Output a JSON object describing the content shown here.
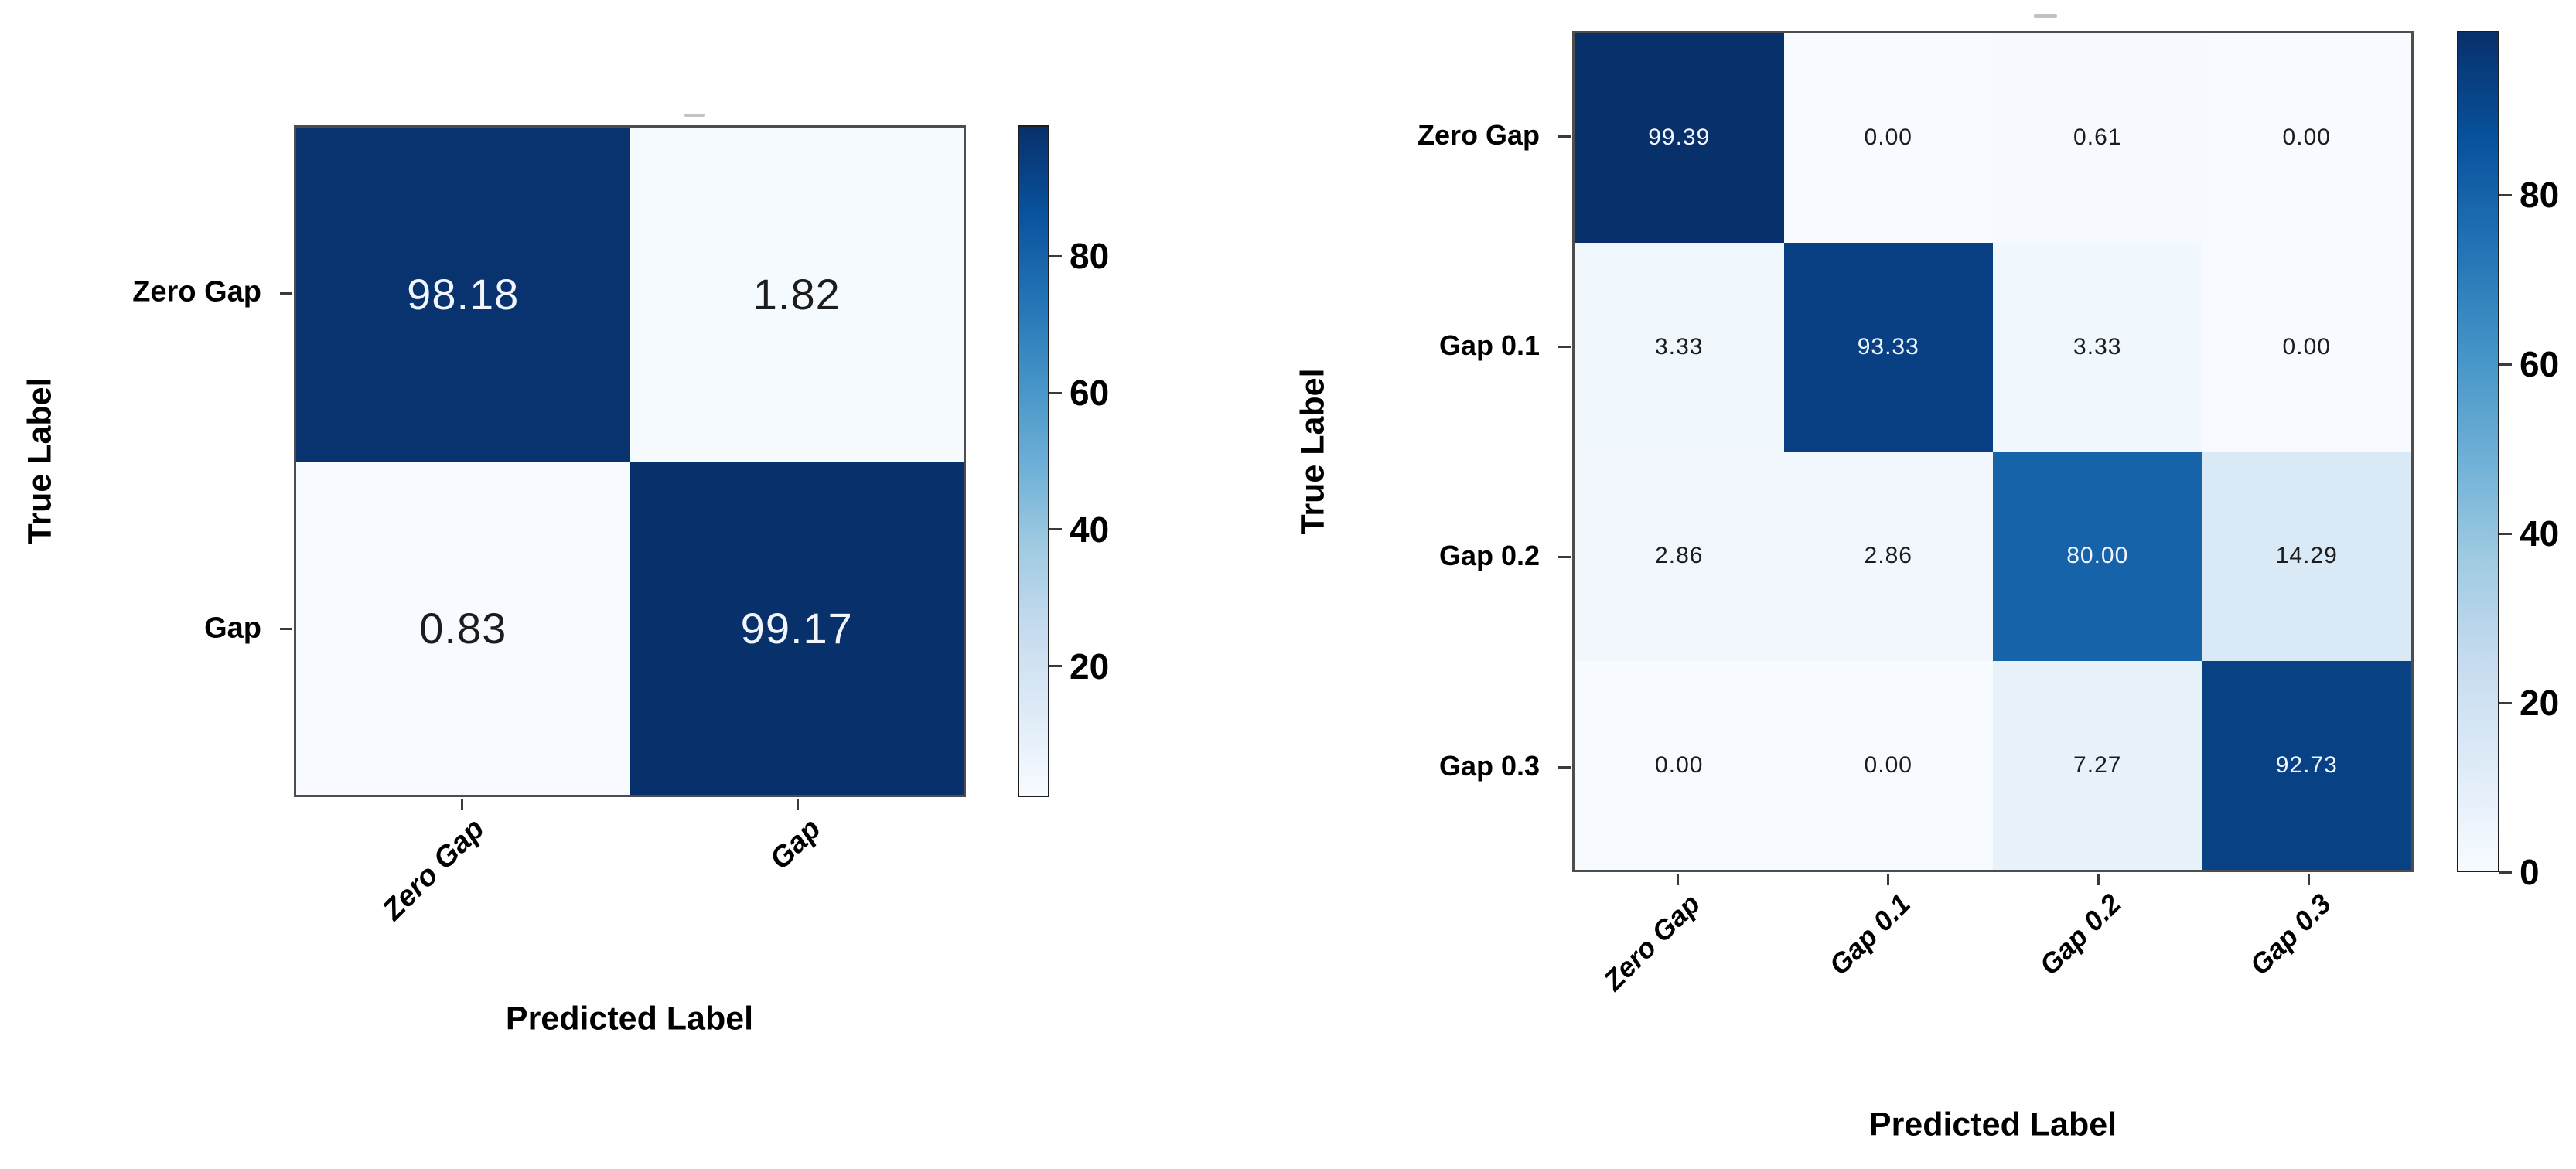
{
  "page": {
    "background": "#ffffff"
  },
  "colormap": {
    "name": "Blues",
    "stops": [
      "#f7fbff",
      "#deebf7",
      "#c6dbef",
      "#9ecae1",
      "#6baed6",
      "#4292c6",
      "#2171b5",
      "#08519c",
      "#08306b"
    ]
  },
  "annotation_colors": {
    "on_dark": "#f2f6fc",
    "on_light": "#1c1c1c"
  },
  "chart_data": [
    {
      "type": "heatmap",
      "title": "",
      "xlabel": "Predicted Label",
      "ylabel": "True Label",
      "categories": [
        "Zero Gap",
        "Gap"
      ],
      "matrix": [
        [
          98.18,
          1.82
        ],
        [
          0.83,
          99.17
        ]
      ],
      "value_decimals": 2,
      "vmin": 0.83,
      "vmax": 99.17,
      "colorbar_ticks": [
        80,
        60,
        40,
        20
      ],
      "legend_position": "right-colorbar",
      "grid": false
    },
    {
      "type": "heatmap",
      "title": "",
      "xlabel": "Predicted Label",
      "ylabel": "True Label",
      "categories": [
        "Zero Gap",
        "Gap 0.1",
        "Gap 0.2",
        "Gap 0.3"
      ],
      "matrix": [
        [
          99.39,
          0.0,
          0.61,
          0.0
        ],
        [
          3.33,
          93.33,
          3.33,
          0.0
        ],
        [
          2.86,
          2.86,
          80.0,
          14.29
        ],
        [
          0.0,
          0.0,
          7.27,
          92.73
        ]
      ],
      "value_decimals": 2,
      "vmin": 0.0,
      "vmax": 99.39,
      "colorbar_ticks": [
        80,
        60,
        40,
        20,
        0
      ],
      "legend_position": "right-colorbar",
      "grid": false
    }
  ]
}
